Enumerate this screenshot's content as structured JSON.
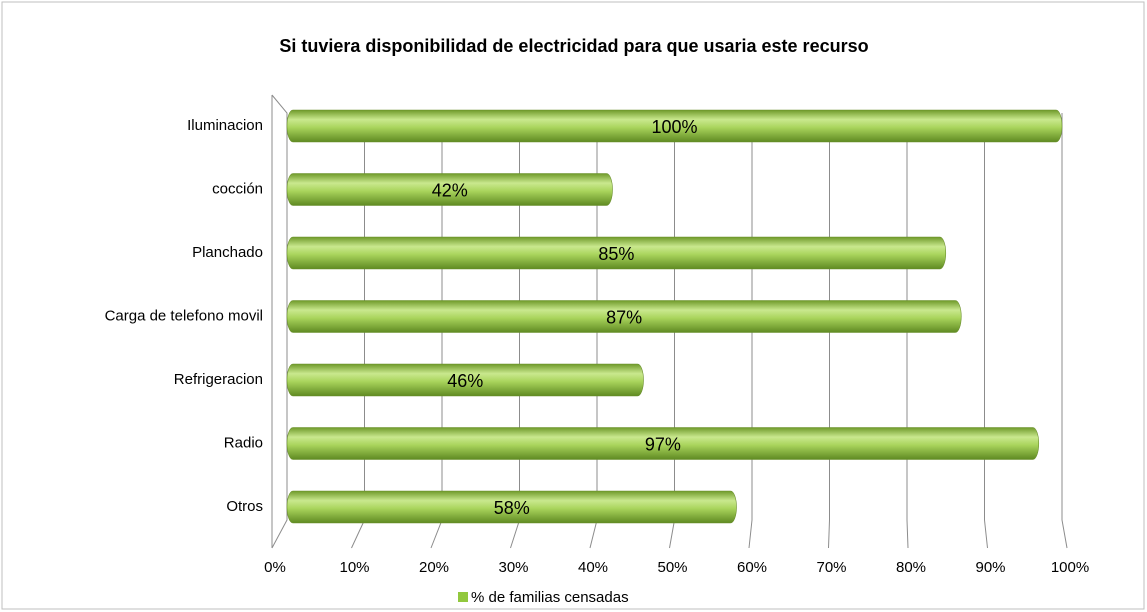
{
  "chart_data": {
    "type": "bar",
    "orientation": "horizontal",
    "title": "Si tuviera disponibilidad de electricidad para que usaria este recurso",
    "categories": [
      "Iluminacion",
      "cocción",
      "Planchado",
      "Carga de telefono movil",
      "Refrigeracion",
      "Radio",
      "Otros"
    ],
    "series": [
      {
        "name": "% de familias censadas",
        "color": "#92c83e",
        "values": [
          100,
          42,
          85,
          87,
          46,
          97,
          58
        ],
        "value_labels": [
          "100%",
          "42%",
          "85%",
          "87%",
          "46%",
          "97%",
          "58%"
        ]
      }
    ],
    "xlim": [
      0,
      100
    ],
    "xticks": [
      {
        "value": 0,
        "label": "0%"
      },
      {
        "value": 10,
        "label": "10%"
      },
      {
        "value": 20,
        "label": "20%"
      },
      {
        "value": 30,
        "label": "30%"
      },
      {
        "value": 40,
        "label": "40%"
      },
      {
        "value": 50,
        "label": "50%"
      },
      {
        "value": 60,
        "label": "60%"
      },
      {
        "value": 70,
        "label": "70%"
      },
      {
        "value": 80,
        "label": "80%"
      },
      {
        "value": 90,
        "label": "90%"
      },
      {
        "value": 100,
        "label": "100%"
      }
    ],
    "grid": true,
    "legend": "bottom"
  }
}
